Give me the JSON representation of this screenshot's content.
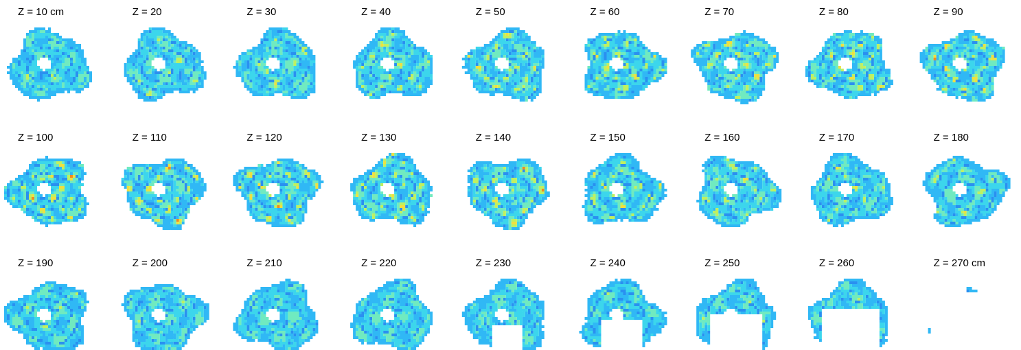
{
  "panels": [
    {
      "label": "Z = 10 cm"
    },
    {
      "label": "Z = 20"
    },
    {
      "label": "Z = 30"
    },
    {
      "label": "Z = 40"
    },
    {
      "label": "Z = 50"
    },
    {
      "label": "Z = 60"
    },
    {
      "label": "Z = 70"
    },
    {
      "label": "Z = 80"
    },
    {
      "label": "Z = 90"
    },
    {
      "label": "Z = 100"
    },
    {
      "label": "Z = 110"
    },
    {
      "label": "Z = 120"
    },
    {
      "label": "Z = 130"
    },
    {
      "label": "Z = 140"
    },
    {
      "label": "Z = 150"
    },
    {
      "label": "Z = 160"
    },
    {
      "label": "Z = 170"
    },
    {
      "label": "Z = 180"
    },
    {
      "label": "Z = 190"
    },
    {
      "label": "Z = 200"
    },
    {
      "label": "Z = 210"
    },
    {
      "label": "Z = 220"
    },
    {
      "label": "Z = 230"
    },
    {
      "label": "Z = 240"
    },
    {
      "label": "Z = 250"
    },
    {
      "label": "Z = 260"
    },
    {
      "label": "Z = 270 cm"
    }
  ]
}
